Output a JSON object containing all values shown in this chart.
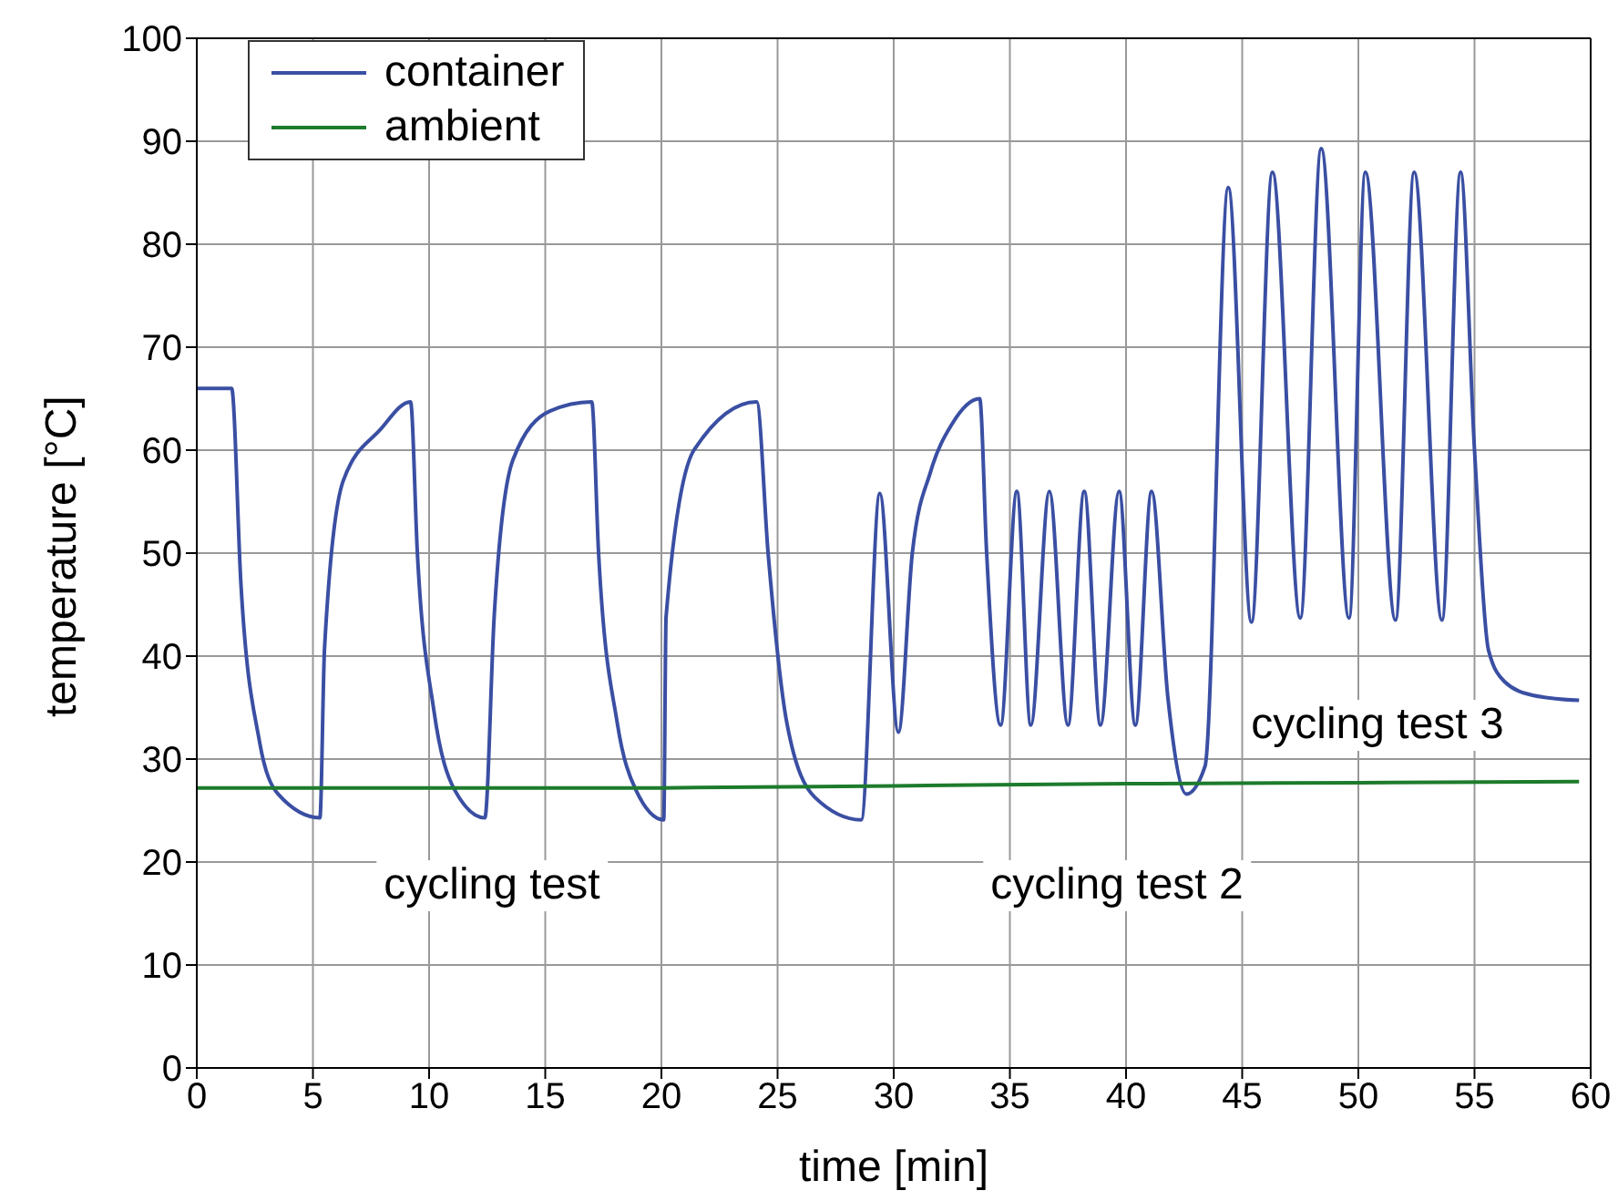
{
  "chart_data": {
    "type": "line",
    "xlabel": "time [min]",
    "ylabel": "temperature [°C]",
    "xlim": [
      0,
      60
    ],
    "ylim": [
      0,
      100
    ],
    "xticks": [
      0,
      5,
      10,
      15,
      20,
      25,
      30,
      35,
      40,
      45,
      50,
      55,
      60
    ],
    "yticks": [
      0,
      10,
      20,
      30,
      40,
      50,
      60,
      70,
      80,
      90,
      100
    ],
    "grid": true,
    "legend": "top left",
    "marker": "none",
    "line_style": "solid",
    "annotations": [
      "cycling test",
      "cycling test 2",
      "cycling test 3"
    ],
    "series": [
      {
        "name": "container",
        "color": "#3a4fa3",
        "x": [
          0,
          1.5,
          1.9,
          2.7,
          3.5,
          5.3,
          5.5,
          6.3,
          7.9,
          9.2,
          9.5,
          10.2,
          11.1,
          12.4,
          12.8,
          13.6,
          15.2,
          17,
          17.3,
          18.1,
          18.9,
          20.1,
          20.2,
          21.4,
          24.1,
          24.6,
          25.4,
          26.6,
          28.6,
          29.4,
          30.2,
          30.8,
          31.6,
          32.5,
          33.7,
          34,
          34.6,
          35.3,
          35.9,
          36.7,
          37.5,
          38.2,
          38.9,
          39.7,
          40.4,
          41.1,
          41.8,
          42.6,
          43.4,
          44.4,
          45.4,
          46.3,
          47.5,
          48.4,
          49.6,
          50.3,
          51.6,
          52.4,
          53.6,
          54.4,
          55,
          55.6,
          56.3,
          57.5,
          59.5
        ],
        "values": [
          66,
          66,
          47,
          31.7,
          26.6,
          24.3,
          40.8,
          57,
          62,
          64.7,
          49.8,
          34.8,
          27,
          24.3,
          43.8,
          59,
          63.8,
          64.7,
          49.8,
          33.5,
          27,
          24.1,
          43.8,
          60,
          64.7,
          49.8,
          33.5,
          26.3,
          24.1,
          55.8,
          32.6,
          50,
          58,
          62.5,
          65,
          50,
          33.3,
          56,
          33.3,
          56,
          33.3,
          56,
          33.3,
          56,
          33.3,
          56,
          36,
          26.6,
          29.3,
          85.5,
          43.3,
          87,
          43.7,
          89.3,
          43.7,
          87,
          43.5,
          87,
          43.5,
          87,
          60,
          40.6,
          37.5,
          36.2,
          35.7
        ]
      },
      {
        "name": "ambient",
        "color": "#1d7b2c",
        "x": [
          0,
          10,
          20,
          30,
          40,
          50,
          59.5
        ],
        "values": [
          27.2,
          27.2,
          27.2,
          27.4,
          27.6,
          27.7,
          27.8
        ]
      }
    ]
  }
}
